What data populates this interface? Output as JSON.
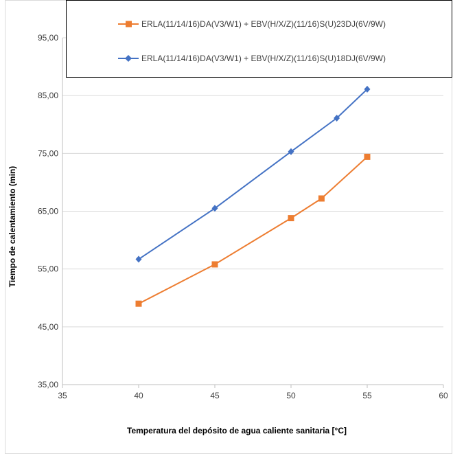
{
  "chart_data": {
    "type": "line",
    "title": "",
    "xlabel": "Temperatura del depósito de agua caliente sanitaria [°C]",
    "ylabel": "Tiempo de calentamiento (min)",
    "xlim": [
      35,
      60
    ],
    "ylim": [
      35,
      95
    ],
    "x_ticks": [
      "35",
      "40",
      "45",
      "50",
      "55",
      "60"
    ],
    "y_ticks": [
      "35,00",
      "45,00",
      "55,00",
      "65,00",
      "75,00",
      "85,00",
      "95,00"
    ],
    "grid": "horizontal",
    "legend_position": "top",
    "series": [
      {
        "name": "ERLA(11/14/16)DA(V3/W1) + EBV(H/X/Z)(11/16)S(U)23DJ(6V/9W)",
        "color": "#ED7D31",
        "marker": "square",
        "x": [
          40,
          45,
          50,
          52,
          55
        ],
        "y": [
          49.0,
          55.8,
          63.8,
          67.2,
          74.4
        ]
      },
      {
        "name": "ERLA(11/14/16)DA(V3/W1) + EBV(H/X/Z)(11/16)S(U)18DJ(6V/9W)",
        "color": "#4472C4",
        "marker": "diamond",
        "x": [
          40,
          45,
          50,
          53,
          55
        ],
        "y": [
          56.7,
          65.5,
          75.3,
          81.1,
          86.1
        ]
      }
    ]
  }
}
